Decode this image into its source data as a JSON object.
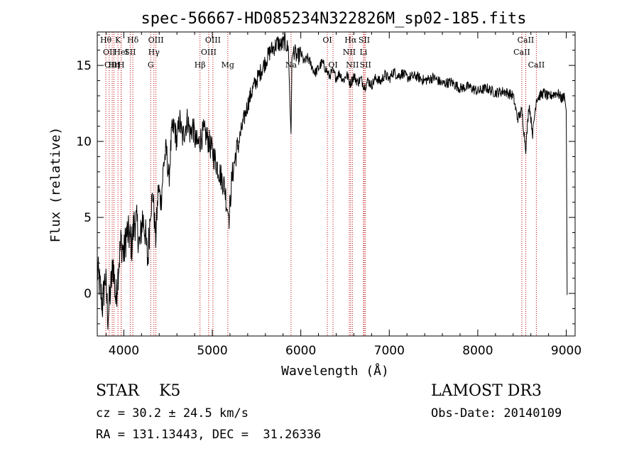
{
  "chart_data": {
    "type": "line",
    "title": "spec-56667-HD085234N322826M_sp02-185.fits",
    "xlabel": "Wavelength (Å)",
    "ylabel": "Flux (relative)",
    "xlim": [
      3700,
      9100
    ],
    "ylim": [
      -2.8,
      17.2
    ],
    "xticks": [
      4000,
      5000,
      6000,
      7000,
      8000,
      9000
    ],
    "yticks": [
      0,
      5,
      10,
      15
    ],
    "grid": false,
    "series": [
      {
        "x": [
          3700,
          3730,
          3760,
          3790,
          3820,
          3850,
          3880,
          3910,
          3940,
          3970,
          4000,
          4030,
          4060,
          4090,
          4120,
          4150,
          4180,
          4210,
          4240,
          4270,
          4300,
          4330,
          4360,
          4390,
          4420,
          4450,
          4480,
          4510,
          4540,
          4570,
          4600,
          4630,
          4660,
          4690,
          4720,
          4750,
          4780,
          4810,
          4840,
          4870,
          4900,
          4930,
          4960,
          4990,
          5020,
          5050,
          5080,
          5110,
          5140,
          5170,
          5190,
          5220,
          5260,
          5300,
          5340,
          5380,
          5420,
          5460,
          5500,
          5540,
          5580,
          5620,
          5660,
          5700,
          5740,
          5780,
          5820,
          5860,
          5880,
          5890,
          5900,
          5920,
          5960,
          6000,
          6040,
          6080,
          6120,
          6160,
          6200,
          6240,
          6280,
          6320,
          6360,
          6400,
          6440,
          6480,
          6520,
          6560,
          6600,
          6640,
          6680,
          6720,
          6760,
          6800,
          6850,
          6900,
          6950,
          7000,
          7050,
          7100,
          7150,
          7200,
          7300,
          7400,
          7500,
          7600,
          7700,
          7800,
          7900,
          8000,
          8100,
          8200,
          8300,
          8400,
          8450,
          8498,
          8542,
          8580,
          8620,
          8662,
          8700,
          8750,
          8800,
          8850,
          8900,
          8950,
          8980,
          9000,
          9010
        ],
        "y": [
          1.5,
          0.5,
          -0.8,
          1.2,
          -1.5,
          0.2,
          2.0,
          -0.5,
          1.8,
          3.5,
          2.5,
          4.0,
          3.8,
          3.2,
          4.8,
          4.5,
          3.0,
          5.0,
          4.2,
          2.0,
          5.5,
          6.5,
          3.5,
          7.0,
          6.0,
          8.5,
          9.5,
          7.5,
          10.5,
          11.0,
          10.0,
          11.5,
          10.2,
          10.8,
          11.5,
          10.5,
          11.0,
          10.0,
          9.8,
          10.2,
          10.6,
          10.4,
          10.0,
          9.5,
          9.0,
          8.5,
          8.0,
          7.5,
          7.0,
          5.5,
          5.0,
          7.5,
          9.0,
          10.0,
          11.0,
          12.0,
          12.8,
          13.5,
          14.0,
          14.5,
          15.0,
          15.5,
          16.0,
          16.2,
          16.5,
          16.3,
          16.6,
          16.0,
          12.0,
          10.5,
          15.5,
          16.0,
          15.5,
          15.8,
          15.2,
          15.5,
          15.0,
          14.5,
          14.8,
          15.2,
          14.8,
          14.3,
          14.6,
          14.2,
          14.5,
          14.0,
          14.4,
          13.8,
          14.3,
          13.9,
          14.1,
          13.6,
          14.0,
          13.7,
          14.2,
          13.9,
          14.4,
          14.1,
          14.6,
          14.3,
          14.5,
          14.2,
          14.3,
          14.0,
          14.2,
          13.8,
          13.9,
          13.5,
          13.6,
          13.3,
          13.5,
          13.2,
          13.3,
          13.0,
          11.5,
          12.0,
          9.5,
          12.5,
          10.5,
          12.8,
          13.0,
          13.2,
          12.9,
          13.1,
          13.2,
          12.8,
          13.0,
          12.0,
          -0.1
        ]
      }
    ],
    "lines": [
      {
        "x": 3797,
        "label": "Hθ",
        "row": 0
      },
      {
        "x": 3835,
        "label": "OII",
        "row": 1
      },
      {
        "x": 3869,
        "label": "OIII",
        "row": 2
      },
      {
        "x": 3889,
        "label": "Hη",
        "row": 2
      },
      {
        "x": 3934,
        "label": "K",
        "row": 0
      },
      {
        "x": 3970,
        "label": "HeI",
        "row": 1
      },
      {
        "x": 3970,
        "label": "H",
        "row": 2
      },
      {
        "x": 4072,
        "label": "SII",
        "row": 1
      },
      {
        "x": 4102,
        "label": "Hδ",
        "row": 0
      },
      {
        "x": 4304,
        "label": "G",
        "row": 2
      },
      {
        "x": 4340,
        "label": "Hγ",
        "row": 1
      },
      {
        "x": 4363,
        "label": "OIII",
        "row": 0
      },
      {
        "x": 4861,
        "label": "Hβ",
        "row": 2
      },
      {
        "x": 4959,
        "label": "OIII",
        "row": 1
      },
      {
        "x": 5007,
        "label": "OIII",
        "row": 0
      },
      {
        "x": 5175,
        "label": "Mg",
        "row": 2
      },
      {
        "x": 5890,
        "label": "Na",
        "row": 2
      },
      {
        "x": 6300,
        "label": "OI",
        "row": 0
      },
      {
        "x": 6364,
        "label": "OI",
        "row": 2
      },
      {
        "x": 6548,
        "label": "NII",
        "row": 1
      },
      {
        "x": 6563,
        "label": "Hα",
        "row": 0
      },
      {
        "x": 6583,
        "label": "NII",
        "row": 2
      },
      {
        "x": 6708,
        "label": "Li",
        "row": 1
      },
      {
        "x": 6717,
        "label": "SII",
        "row": 0
      },
      {
        "x": 6731,
        "label": "SII",
        "row": 2
      },
      {
        "x": 8498,
        "label": "CaII",
        "row": 1
      },
      {
        "x": 8542,
        "label": "CaII",
        "row": 0
      },
      {
        "x": 8662,
        "label": "CaII",
        "row": 2
      }
    ]
  },
  "info": {
    "star_class": "STAR    K5",
    "survey": "LAMOST DR3",
    "cz": "cz = 30.2 ± 24.5 km/s",
    "obs_date": "Obs-Date: 20140109",
    "radec": "RA = 131.13443, DEC =  31.26336"
  }
}
